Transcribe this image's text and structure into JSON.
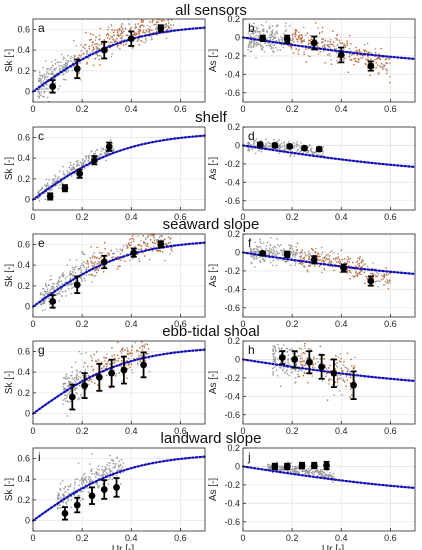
{
  "figure": {
    "xlabel": "Ur [-]",
    "xticks": [
      "0",
      "0.2",
      "0.4",
      "0.6"
    ],
    "xlim": [
      0,
      0.7
    ]
  },
  "colors": {
    "scatter_gray": "#9a9a9a",
    "scatter_orange": "#c8602a",
    "fit_line": "#1010b8",
    "bin_marker": "#000000",
    "grid": "#e6e6e6"
  },
  "chart_data": [
    {
      "type": "scatter",
      "row_title": "all sensors",
      "panels": [
        {
          "label": "a",
          "ylabel": "Sk [-]",
          "ylim": [
            -0.1,
            0.7
          ],
          "yticks": [
            "0",
            "0.2",
            "0.4",
            "0.6"
          ],
          "curve": "sk",
          "cloud": {
            "x_min": 0.02,
            "x_max": 0.58,
            "spread": 0.08,
            "orange_from": 0.18,
            "density": 1.0
          },
          "bins": [
            {
              "x": 0.08,
              "y": 0.05,
              "err": 0.06
            },
            {
              "x": 0.18,
              "y": 0.22,
              "err": 0.09
            },
            {
              "x": 0.29,
              "y": 0.4,
              "err": 0.08
            },
            {
              "x": 0.4,
              "y": 0.51,
              "err": 0.07
            },
            {
              "x": 0.52,
              "y": 0.61,
              "err": 0.03
            }
          ]
        },
        {
          "label": "b",
          "ylabel": "As [-]",
          "ylim": [
            -0.7,
            0.2
          ],
          "yticks": [
            "0.2",
            "0",
            "-0.2",
            "-0.4",
            "-0.6"
          ],
          "curve": "as",
          "cloud": {
            "x_min": 0.02,
            "x_max": 0.6,
            "spread": 0.08,
            "orange_from": 0.18,
            "density": 1.0
          },
          "bins": [
            {
              "x": 0.08,
              "y": -0.01,
              "err": 0.03
            },
            {
              "x": 0.18,
              "y": -0.02,
              "err": 0.04
            },
            {
              "x": 0.29,
              "y": -0.06,
              "err": 0.07
            },
            {
              "x": 0.4,
              "y": -0.19,
              "err": 0.08
            },
            {
              "x": 0.52,
              "y": -0.31,
              "err": 0.05
            }
          ]
        }
      ]
    },
    {
      "type": "scatter",
      "row_title": "shelf",
      "panels": [
        {
          "label": "c",
          "ylabel": "Sk [-]",
          "ylim": [
            -0.1,
            0.7
          ],
          "yticks": [
            "0",
            "0.2",
            "0.4",
            "0.6"
          ],
          "curve": "sk",
          "cloud": {
            "x_min": 0.02,
            "x_max": 0.33,
            "spread": 0.04,
            "orange_from": 1.0,
            "density": 0.45
          },
          "bins": [
            {
              "x": 0.07,
              "y": 0.03,
              "err": 0.03
            },
            {
              "x": 0.13,
              "y": 0.11,
              "err": 0.03
            },
            {
              "x": 0.19,
              "y": 0.25,
              "err": 0.04
            },
            {
              "x": 0.25,
              "y": 0.38,
              "err": 0.04
            },
            {
              "x": 0.31,
              "y": 0.51,
              "err": 0.04
            }
          ]
        },
        {
          "label": "d",
          "ylabel": "As [-]",
          "ylim": [
            -0.7,
            0.2
          ],
          "yticks": [
            "0.2",
            "0",
            "-0.2",
            "-0.4",
            "-0.6"
          ],
          "curve": "as",
          "cloud": {
            "x_min": 0.02,
            "x_max": 0.33,
            "spread": 0.04,
            "orange_from": 1.0,
            "density": 0.45
          },
          "bins": [
            {
              "x": 0.07,
              "y": 0.01,
              "err": 0.02
            },
            {
              "x": 0.13,
              "y": 0.0,
              "err": 0.02
            },
            {
              "x": 0.19,
              "y": -0.01,
              "err": 0.02
            },
            {
              "x": 0.25,
              "y": -0.03,
              "err": 0.02
            },
            {
              "x": 0.31,
              "y": -0.04,
              "err": 0.02
            }
          ]
        }
      ]
    },
    {
      "type": "scatter",
      "row_title": "seaward slope",
      "panels": [
        {
          "label": "e",
          "ylabel": "Sk [-]",
          "ylim": [
            -0.1,
            0.7
          ],
          "yticks": [
            "0",
            "0.2",
            "0.4",
            "0.6"
          ],
          "curve": "sk",
          "cloud": {
            "x_min": 0.03,
            "x_max": 0.58,
            "spread": 0.08,
            "orange_from": 0.22,
            "density": 0.9
          },
          "bins": [
            {
              "x": 0.08,
              "y": 0.05,
              "err": 0.06
            },
            {
              "x": 0.18,
              "y": 0.21,
              "err": 0.08
            },
            {
              "x": 0.29,
              "y": 0.43,
              "err": 0.06
            },
            {
              "x": 0.41,
              "y": 0.52,
              "err": 0.04
            },
            {
              "x": 0.52,
              "y": 0.6,
              "err": 0.03
            }
          ]
        },
        {
          "label": "f",
          "ylabel": "As [-]",
          "ylim": [
            -0.7,
            0.2
          ],
          "yticks": [
            "0.2",
            "0",
            "-0.2",
            "-0.4",
            "-0.6"
          ],
          "curve": "as",
          "cloud": {
            "x_min": 0.03,
            "x_max": 0.6,
            "spread": 0.07,
            "orange_from": 0.22,
            "density": 0.9
          },
          "bins": [
            {
              "x": 0.08,
              "y": -0.01,
              "err": 0.02
            },
            {
              "x": 0.18,
              "y": -0.02,
              "err": 0.03
            },
            {
              "x": 0.29,
              "y": -0.08,
              "err": 0.04
            },
            {
              "x": 0.41,
              "y": -0.17,
              "err": 0.04
            },
            {
              "x": 0.52,
              "y": -0.31,
              "err": 0.05
            }
          ]
        }
      ]
    },
    {
      "type": "scatter",
      "row_title": "ebb-tidal shoal",
      "panels": [
        {
          "label": "g",
          "ylabel": "Sk [-]",
          "ylim": [
            -0.1,
            0.7
          ],
          "yticks": [
            "0",
            "0.2",
            "0.4",
            "0.6"
          ],
          "curve": "sk",
          "cloud": {
            "x_min": 0.12,
            "x_max": 0.48,
            "spread": 0.1,
            "orange_from": 0.22,
            "density": 0.6
          },
          "bins": [
            {
              "x": 0.16,
              "y": 0.16,
              "err": 0.12
            },
            {
              "x": 0.21,
              "y": 0.27,
              "err": 0.12
            },
            {
              "x": 0.27,
              "y": 0.35,
              "err": 0.13
            },
            {
              "x": 0.32,
              "y": 0.39,
              "err": 0.13
            },
            {
              "x": 0.37,
              "y": 0.42,
              "err": 0.13
            },
            {
              "x": 0.45,
              "y": 0.47,
              "err": 0.12
            }
          ]
        },
        {
          "label": "h",
          "ylabel": "As [-]",
          "ylim": [
            -0.7,
            0.2
          ],
          "yticks": [
            "0.2",
            "0",
            "-0.2",
            "-0.4",
            "-0.6"
          ],
          "curve": "as",
          "cloud": {
            "x_min": 0.12,
            "x_max": 0.46,
            "spread": 0.12,
            "orange_from": 0.22,
            "density": 0.6
          },
          "bins": [
            {
              "x": 0.16,
              "y": 0.02,
              "err": 0.07
            },
            {
              "x": 0.21,
              "y": 0.0,
              "err": 0.09
            },
            {
              "x": 0.27,
              "y": -0.03,
              "err": 0.12
            },
            {
              "x": 0.32,
              "y": -0.08,
              "err": 0.13
            },
            {
              "x": 0.37,
              "y": -0.15,
              "err": 0.15
            },
            {
              "x": 0.45,
              "y": -0.28,
              "err": 0.15
            }
          ]
        }
      ]
    },
    {
      "type": "scatter",
      "row_title": "landward slope",
      "panels": [
        {
          "label": "i",
          "ylabel": "Sk [-]",
          "ylim": [
            -0.1,
            0.7
          ],
          "yticks": [
            "0",
            "0.2",
            "0.4",
            "0.6"
          ],
          "curve": "sk",
          "cloud": {
            "x_min": 0.1,
            "x_max": 0.37,
            "spread": 0.08,
            "orange_from": 1.0,
            "density": 0.5
          },
          "bins": [
            {
              "x": 0.13,
              "y": 0.07,
              "err": 0.06
            },
            {
              "x": 0.18,
              "y": 0.15,
              "err": 0.07
            },
            {
              "x": 0.24,
              "y": 0.24,
              "err": 0.08
            },
            {
              "x": 0.29,
              "y": 0.3,
              "err": 0.09
            },
            {
              "x": 0.34,
              "y": 0.32,
              "err": 0.09
            }
          ]
        },
        {
          "label": "j",
          "ylabel": "As [-]",
          "ylim": [
            -0.7,
            0.2
          ],
          "yticks": [
            "0.2",
            "0",
            "-0.2",
            "-0.4",
            "-0.6"
          ],
          "curve": "as",
          "cloud": {
            "x_min": 0.1,
            "x_max": 0.37,
            "spread": 0.03,
            "orange_from": 1.0,
            "density": 0.5
          },
          "bins": [
            {
              "x": 0.13,
              "y": 0.0,
              "err": 0.03
            },
            {
              "x": 0.18,
              "y": 0.0,
              "err": 0.03
            },
            {
              "x": 0.24,
              "y": 0.01,
              "err": 0.03
            },
            {
              "x": 0.29,
              "y": 0.01,
              "err": 0.03
            },
            {
              "x": 0.34,
              "y": 0.01,
              "err": 0.04
            }
          ]
        }
      ]
    }
  ]
}
